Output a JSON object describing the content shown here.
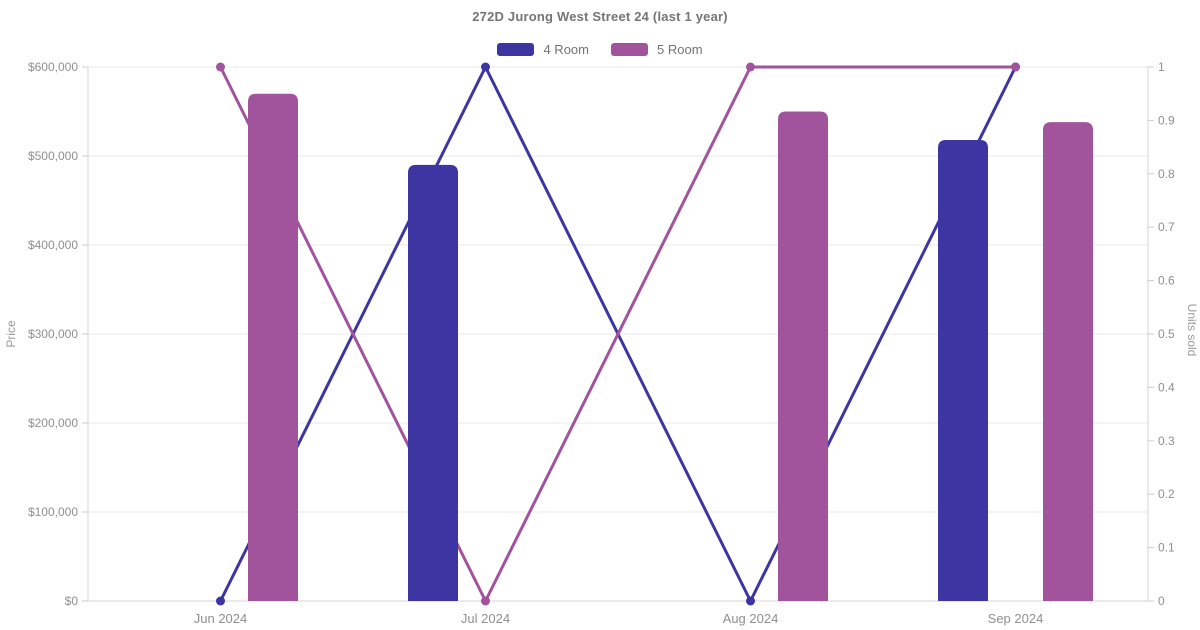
{
  "chart_data": {
    "type": "combo-bar-line",
    "title": "272D Jurong West Street 24 (last 1 year)",
    "categories": [
      "Jun 2024",
      "Jul 2024",
      "Aug 2024",
      "Sep 2024"
    ],
    "series": [
      {
        "name": "4 Room",
        "color": "#3c35a2",
        "price_bars": [
          null,
          490000,
          null,
          518000
        ],
        "units_sold_line": [
          0,
          1,
          0,
          1
        ]
      },
      {
        "name": "5 Room",
        "color": "#a1539c",
        "price_bars": [
          570000,
          null,
          550000,
          538000
        ],
        "units_sold_line": [
          1,
          0,
          1,
          1
        ]
      }
    ],
    "y_axis_left": {
      "name": "Price",
      "min": 0,
      "max": 600000,
      "ticks": [
        "$0",
        "$100,000",
        "$200,000",
        "$300,000",
        "$400,000",
        "$500,000",
        "$600,000"
      ]
    },
    "y_axis_right": {
      "name": "Units sold",
      "min": 0,
      "max": 1,
      "ticks": [
        "0",
        "0.1",
        "0.2",
        "0.3",
        "0.4",
        "0.5",
        "0.6",
        "0.7",
        "0.8",
        "0.9",
        "1"
      ]
    },
    "grid": true,
    "legend_position": "top-center",
    "colors": {
      "background": "#ffffff",
      "grid_line": "#e9e9e9",
      "axis_line": "#d4d4d4",
      "tick_mark": "#cccccc",
      "tick_label": "#8f8f8f",
      "axis_name": "#999999",
      "title_text": "#757575",
      "legend_text": "#737373"
    }
  }
}
